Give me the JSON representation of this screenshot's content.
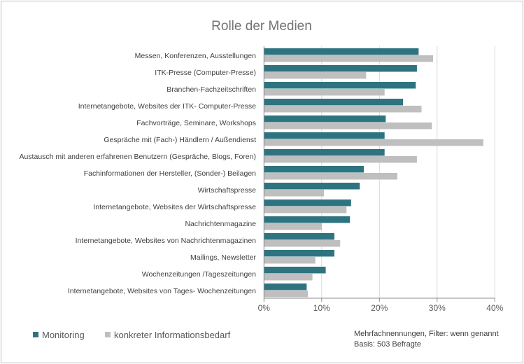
{
  "chart_data": {
    "type": "bar",
    "orientation": "horizontal",
    "title": "Rolle der Medien",
    "categories": [
      "Messen, Konferenzen, Ausstellungen",
      "ITK-Presse (Computer-Presse)",
      "Branchen-Fachzeitschriften",
      "Internetangebote, Websites der ITK- Computer-Presse",
      "Fachvorträge, Seminare, Workshops",
      "Gespräche mit (Fach-) Händlern / Außendienst",
      "Austausch mit anderen erfahrenen Benutzern (Gespräche, Blogs, Foren)",
      "Fachinformationen der Hersteller, (Sonder-) Beilagen",
      "Wirtschaftspresse",
      "Internetangebote, Websites der Wirtschaftspresse",
      "Nachrichtenmagazine",
      "Internetangebote, Websites von Nachrichtenmagazinen",
      "Mailings, Newsletter",
      "Wochenzeitungen /Tageszeitungen",
      "Internetangebote, Websites von Tages- Wochenzeitungen"
    ],
    "series": [
      {
        "name": "Monitoring",
        "color": "#2e7480",
        "values": [
          26.8,
          26.5,
          26.3,
          24.1,
          21.1,
          20.9,
          20.9,
          17.3,
          16.6,
          15.1,
          14.9,
          12.2,
          12.2,
          10.7,
          7.4
        ]
      },
      {
        "name": "konkreter Informationsbedarf",
        "color": "#bfbfbf",
        "values": [
          29.3,
          17.7,
          20.9,
          27.3,
          29.1,
          38.0,
          26.5,
          23.1,
          10.4,
          14.3,
          10.0,
          13.2,
          8.9,
          8.4,
          7.6
        ]
      }
    ],
    "xlim": [
      0,
      40
    ],
    "xticks": [
      "0%",
      "10%",
      "20%",
      "30%",
      "40%"
    ],
    "xtick_values": [
      0,
      10,
      20,
      30,
      40
    ],
    "grid": true,
    "legend_placement": "bottom-left",
    "notes": [
      "Mehrfachnennungen, Filter: wenn genannt",
      "Basis: 503 Befragte"
    ]
  }
}
